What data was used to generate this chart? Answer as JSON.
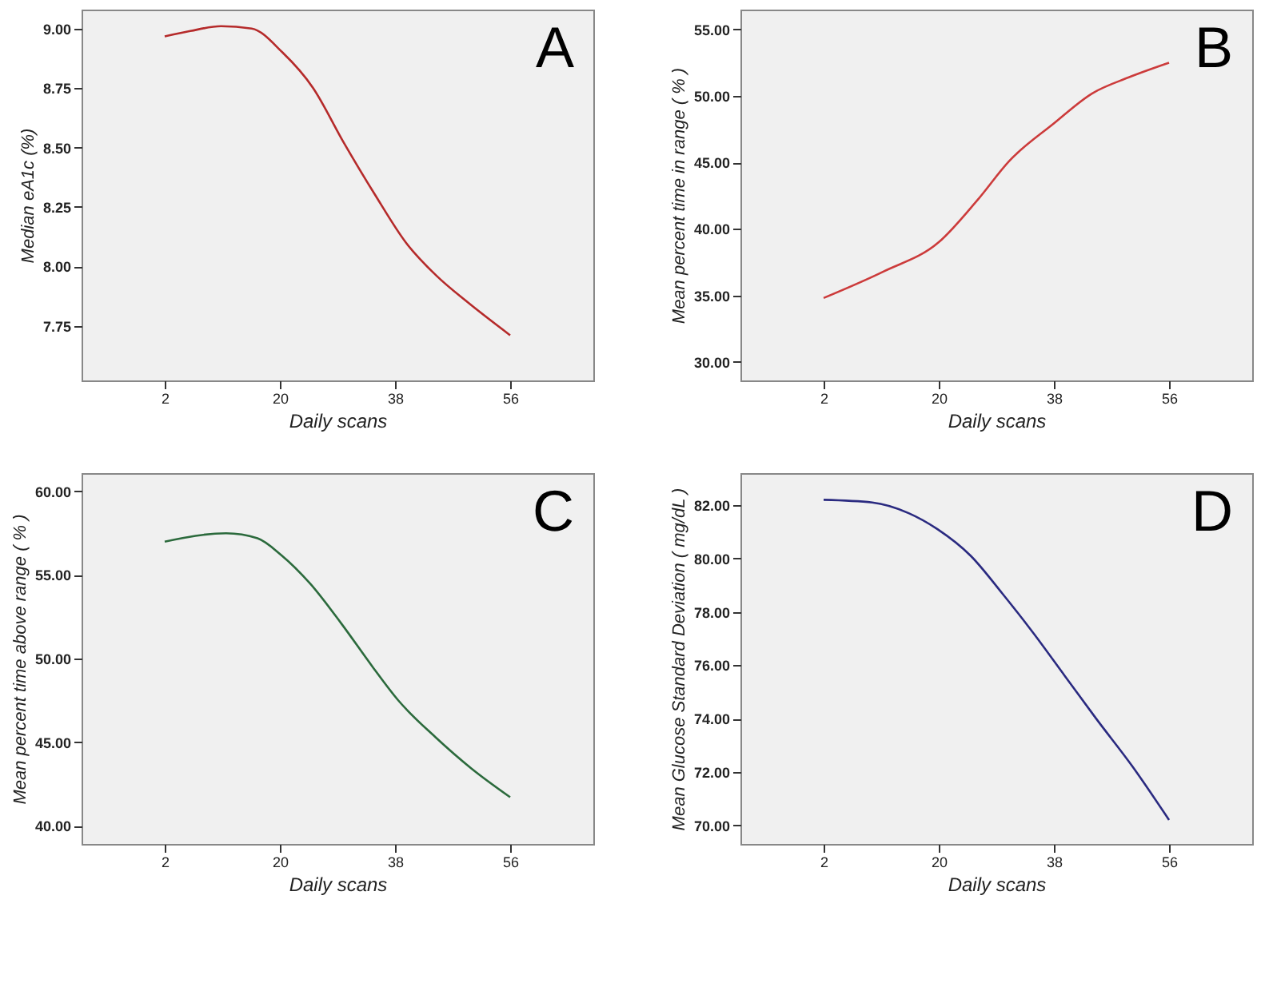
{
  "chart_data": [
    {
      "type": "line",
      "xlabel": "Daily scans",
      "ylabel": "Median eA1c (%)",
      "annotations": [
        "A"
      ],
      "xlim": [
        -11,
        69
      ],
      "xticks": [
        2,
        20,
        38,
        56
      ],
      "ylim": [
        7.52,
        9.08
      ],
      "yticks": [
        {
          "value": 7.75,
          "label": "7.75"
        },
        {
          "value": 8,
          "label": "8.00"
        },
        {
          "value": 8.25,
          "label": "8.25"
        },
        {
          "value": 8.5,
          "label": "8.50"
        },
        {
          "value": 8.75,
          "label": "8.75"
        },
        {
          "value": 9,
          "label": "9.00"
        }
      ],
      "grid": false,
      "series": [
        {
          "color": "#b52a2a",
          "x": [
            2,
            6,
            10.8,
            15.6,
            20.4,
            25.2,
            30,
            34.9,
            39.7,
            44.5,
            49.3,
            56
          ],
          "values": [
            8.967,
            8.99,
            9.01,
            9.0,
            8.9,
            8.75,
            8.52,
            8.3,
            8.1,
            7.96,
            7.85,
            7.71
          ]
        }
      ]
    },
    {
      "type": "line",
      "xlabel": "Daily scans",
      "ylabel": "Mean percent time in range ( % )",
      "annotations": [
        "B"
      ],
      "xlim": [
        -11,
        69
      ],
      "xticks": [
        2,
        20,
        38,
        56
      ],
      "ylim": [
        28.6,
        56.5
      ],
      "yticks": [
        {
          "value": 30,
          "label": "30.00"
        },
        {
          "value": 35,
          "label": "35.00"
        },
        {
          "value": 40,
          "label": "40.00"
        },
        {
          "value": 45,
          "label": "45.00"
        },
        {
          "value": 50,
          "label": "50.00"
        },
        {
          "value": 55,
          "label": "55.00"
        }
      ],
      "grid": false,
      "series": [
        {
          "color": "#cc3b3b",
          "x": [
            2,
            11.4,
            20,
            26.1,
            31,
            37.9,
            44,
            49.7,
            56
          ],
          "values": [
            34.8,
            36.8,
            39.0,
            42.2,
            45.1,
            47.9,
            50.2,
            51.4,
            52.5
          ]
        }
      ]
    },
    {
      "type": "line",
      "xlabel": "Daily scans",
      "ylabel": "Mean percent time above range ( % )",
      "annotations": [
        "C"
      ],
      "xlim": [
        -11,
        69
      ],
      "xticks": [
        2,
        20,
        38,
        56
      ],
      "ylim": [
        38.9,
        61.1
      ],
      "yticks": [
        {
          "value": 40,
          "label": "40.00"
        },
        {
          "value": 45,
          "label": "45.00"
        },
        {
          "value": 50,
          "label": "50.00"
        },
        {
          "value": 55,
          "label": "55.00"
        },
        {
          "value": 60,
          "label": "60.00"
        }
      ],
      "grid": false,
      "series": [
        {
          "color": "#2b6a3c",
          "x": [
            2,
            11.6,
            16.5,
            20.2,
            24.7,
            29.6,
            34.5,
            38.5,
            44.3,
            50,
            56
          ],
          "values": [
            57.0,
            57.5,
            57.2,
            56.2,
            54.5,
            52.1,
            49.5,
            47.5,
            45.3,
            43.4,
            41.7
          ]
        }
      ]
    },
    {
      "type": "line",
      "xlabel": "Daily scans",
      "ylabel": "Mean Glucose Standard Deviation ( mg/dL )",
      "annotations": [
        "D"
      ],
      "xlim": [
        -11,
        69
      ],
      "xticks": [
        2,
        20,
        38,
        56
      ],
      "ylim": [
        69.3,
        83.2
      ],
      "yticks": [
        {
          "value": 70,
          "label": "70.00"
        },
        {
          "value": 72,
          "label": "72.00"
        },
        {
          "value": 74,
          "label": "74.00"
        },
        {
          "value": 76,
          "label": "76.00"
        },
        {
          "value": 78,
          "label": "78.00"
        },
        {
          "value": 80,
          "label": "80.00"
        },
        {
          "value": 82,
          "label": "82.00"
        }
      ],
      "grid": false,
      "series": [
        {
          "color": "#2a2a80",
          "x": [
            2,
            9.6,
            15.3,
            19.8,
            25,
            29.9,
            34.8,
            39.7,
            44.6,
            50.3,
            56
          ],
          "values": [
            82.2,
            82.1,
            81.7,
            81.1,
            80.1,
            78.7,
            77.2,
            75.6,
            74.0,
            72.2,
            70.2
          ]
        }
      ]
    }
  ]
}
